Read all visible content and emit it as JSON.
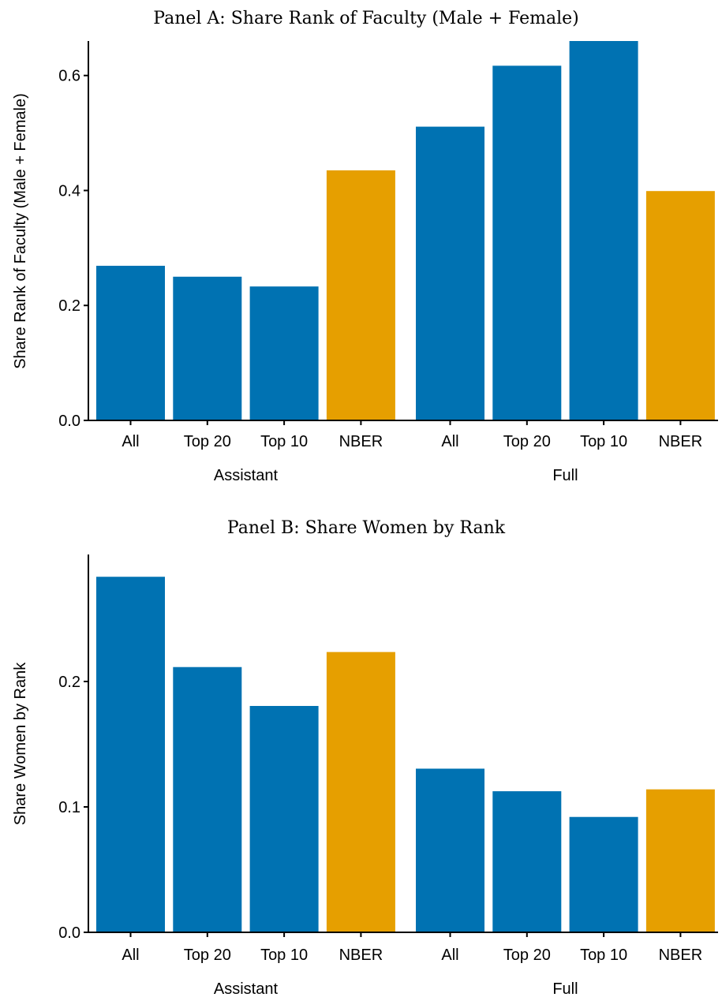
{
  "colors": {
    "comparison": "#0072B2",
    "nber": "#E69F00"
  },
  "chart_data": [
    {
      "type": "bar",
      "title": "Panel A: Share Rank of Faculty (Male + Female)",
      "ylabel": "Share Rank of Faculty (Male + Female)",
      "ylim": [
        0,
        0.66
      ],
      "yticks": [
        "0.0",
        "0.2",
        "0.4",
        "0.6"
      ],
      "ytick_values": [
        0,
        0.2,
        0.4,
        0.6
      ],
      "groups": [
        {
          "name": "Assistant",
          "categories": [
            "All",
            "Top 20",
            "Top 10",
            "NBER"
          ],
          "values": [
            0.269,
            0.25,
            0.233,
            0.435
          ]
        },
        {
          "name": "Full",
          "categories": [
            "All",
            "Top 20",
            "Top 10",
            "NBER"
          ],
          "values": [
            0.511,
            0.617,
            0.66,
            0.399
          ]
        }
      ],
      "highlight_category": "NBER",
      "grid": false
    },
    {
      "type": "bar",
      "title": "Panel B: Share Women by Rank",
      "ylabel": "Share Women by Rank",
      "ylim": [
        0,
        0.3
      ],
      "yticks": [
        "0.0",
        "0.1",
        "0.2"
      ],
      "ytick_values": [
        0,
        0.1,
        0.2
      ],
      "groups": [
        {
          "name": "Assistant",
          "categories": [
            "All",
            "Top 20",
            "Top 10",
            "NBER"
          ],
          "values": [
            0.2835,
            0.2115,
            0.1805,
            0.2235
          ]
        },
        {
          "name": "Full",
          "categories": [
            "All",
            "Top 20",
            "Top 10",
            "NBER"
          ],
          "values": [
            0.1305,
            0.1125,
            0.092,
            0.114
          ]
        }
      ],
      "highlight_category": "NBER",
      "grid": false
    }
  ]
}
